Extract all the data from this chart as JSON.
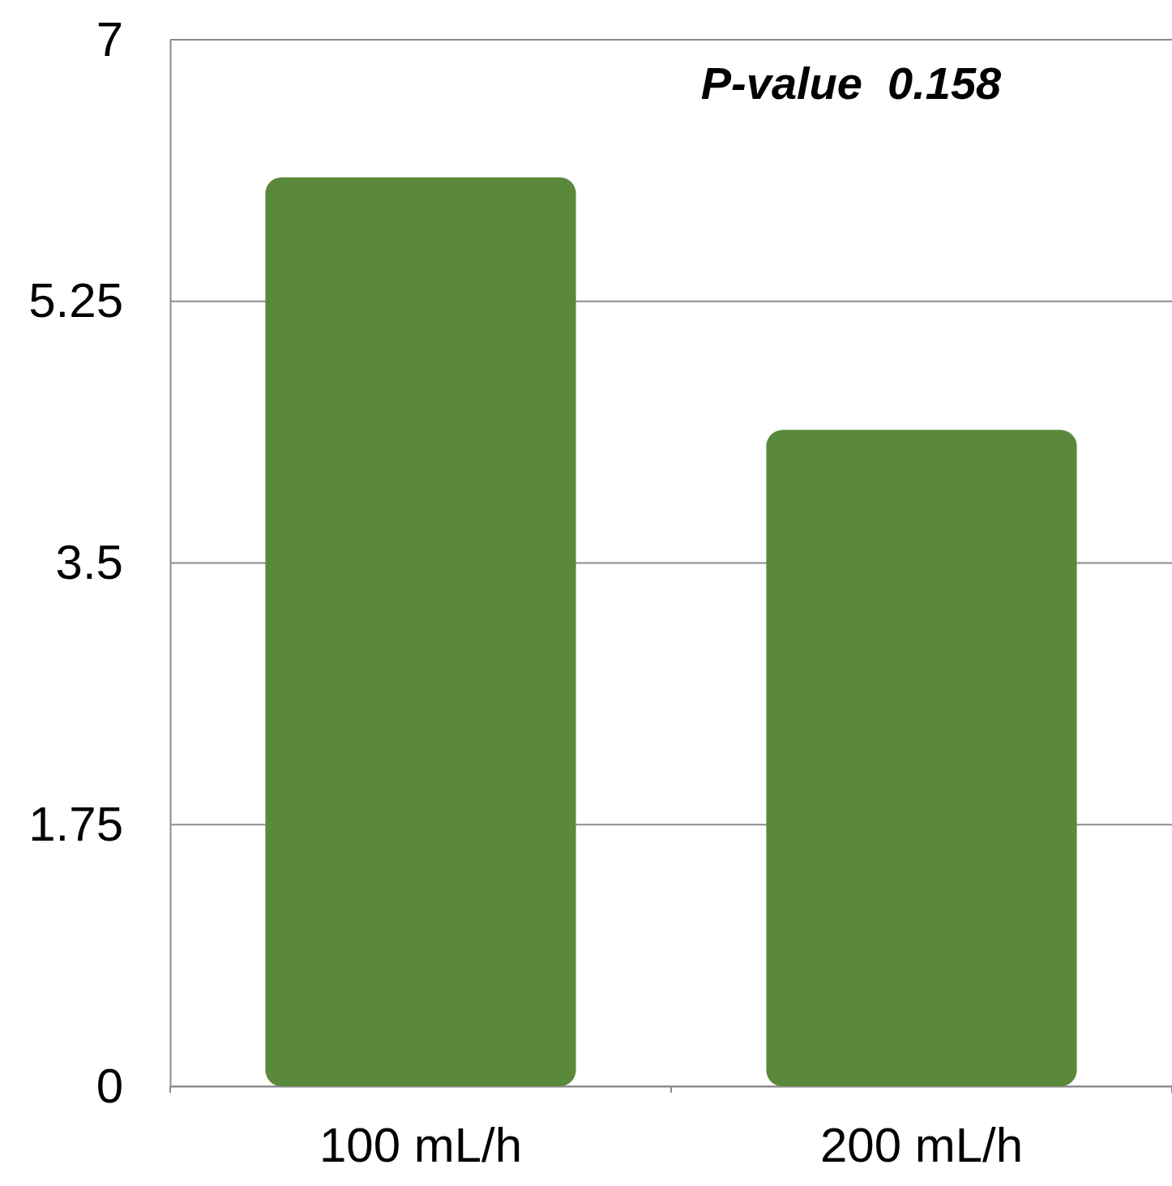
{
  "chart_data": {
    "type": "bar",
    "categories": [
      "100 mL/h",
      "200 mL/h"
    ],
    "values": [
      6.08,
      4.39
    ],
    "color": "#5b893b",
    "ylim": [
      0,
      7
    ],
    "yticks": [
      0,
      1.75,
      3.5,
      5.25,
      7
    ],
    "grid": "y",
    "annotations": [
      "P-value  0.158"
    ]
  }
}
